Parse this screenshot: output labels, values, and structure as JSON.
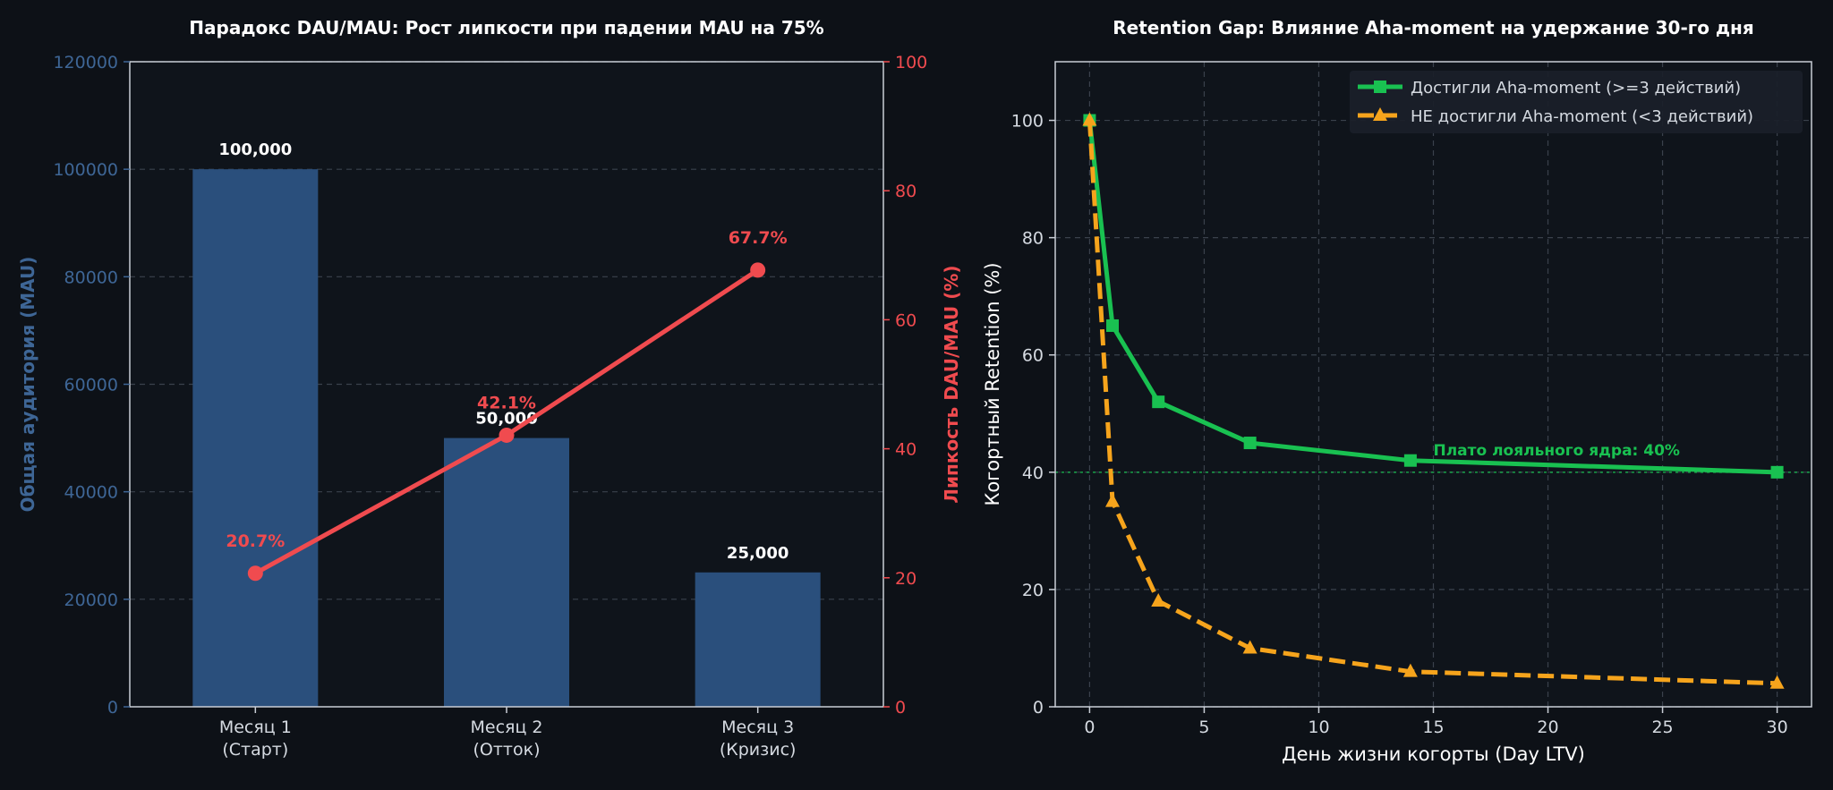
{
  "colors": {
    "background": "#0d1117",
    "axes_face": "#0f141b",
    "spine": "#c9ced6",
    "grid": "#3a414c",
    "text": "#ffffff",
    "tick_text": "#d5dae1",
    "bar": "#2a4f7c",
    "mau_axis": "#3e6696",
    "dau_line": "#f04b4f",
    "aha_line": "#19c151",
    "no_aha_line": "#f6a41c",
    "legend_face": "#1a2029"
  },
  "chart_data": [
    {
      "type": "bar",
      "title": "Парадокс DAU/MAU: Рост липкости при падении MAU на 75%",
      "categories": [
        "Месяц 1\n(Старт)",
        "Месяц 2\n(Отток)",
        "Месяц 3\n(Кризис)"
      ],
      "ylabel": "Общая аудитория (MAU)",
      "ylim": [
        0,
        120000
      ],
      "yticks": [
        "0",
        "20000",
        "40000",
        "60000",
        "80000",
        "100000",
        "120000"
      ],
      "series": [
        {
          "values": [
            100000,
            50000,
            25000
          ],
          "labels": [
            "100,000",
            "50,000",
            "25,000"
          ]
        }
      ],
      "secondary_axis": {
        "type": "line",
        "ylabel": "Липкость DAU/MAU (%)",
        "ylim": [
          0,
          100
        ],
        "yticks": [
          "0",
          "20",
          "40",
          "60",
          "80",
          "100"
        ],
        "values": [
          20.7,
          42.1,
          67.7
        ],
        "labels": [
          "20.7%",
          "42.1%",
          "67.7%"
        ]
      },
      "grid": true
    },
    {
      "type": "line",
      "title": "Retention Gap: Влияние Aha-moment на удержание 30-го дня",
      "xlabel": "День жизни когорты (Day LTV)",
      "ylabel": "Когортный Retention (%)",
      "xlim": [
        -1.5,
        31.5
      ],
      "ylim": [
        0,
        110
      ],
      "xticks": [
        "0",
        "5",
        "10",
        "15",
        "20",
        "25",
        "30"
      ],
      "yticks": [
        "0",
        "20",
        "40",
        "60",
        "80",
        "100"
      ],
      "legend_position": "top-right",
      "grid": true,
      "series": [
        {
          "name": "Достигли Aha-moment (>=3 действий)",
          "x": [
            0,
            1,
            3,
            7,
            14,
            30
          ],
          "y": [
            100,
            65,
            52,
            45,
            42,
            40
          ],
          "style": "solid",
          "marker": "square"
        },
        {
          "name": "НЕ достигли Aha-moment (<3 действий)",
          "x": [
            0,
            1,
            3,
            7,
            14,
            30
          ],
          "y": [
            100,
            35,
            18,
            10,
            6,
            4
          ],
          "style": "dashed",
          "marker": "triangle"
        }
      ],
      "reference_line": {
        "y": 40,
        "label": "Плато лояльного ядра: 40%"
      }
    }
  ]
}
